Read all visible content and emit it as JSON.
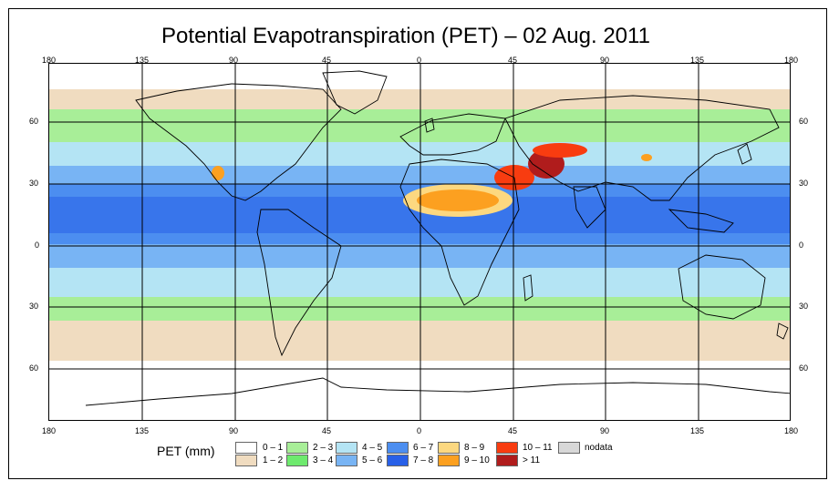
{
  "title": "Potential Evapotranspiration (PET) – 02 Aug. 2011",
  "axes": {
    "lon_ticks": [
      "180",
      "135",
      "90",
      "45",
      "0",
      "45",
      "90",
      "135",
      "180"
    ],
    "lat_ticks": [
      "60",
      "30",
      "0",
      "30",
      "60"
    ]
  },
  "legend": {
    "title": "PET (mm)",
    "items": [
      {
        "label": "0 – 1",
        "color": "#ffffff"
      },
      {
        "label": "1 – 2",
        "color": "#f0dcc0"
      },
      {
        "label": "2 – 3",
        "color": "#a8ee98"
      },
      {
        "label": "3 – 4",
        "color": "#6eea6e"
      },
      {
        "label": "4 – 5",
        "color": "#b4e4f4"
      },
      {
        "label": "5 – 6",
        "color": "#78b4f4"
      },
      {
        "label": "6 – 7",
        "color": "#4c8ef0"
      },
      {
        "label": "7 – 8",
        "color": "#2860e8"
      },
      {
        "label": "8 – 9",
        "color": "#fcd880"
      },
      {
        "label": "9 – 10",
        "color": "#fca020"
      },
      {
        "label": "10 – 11",
        "color": "#f83c10"
      },
      {
        "label": "> 11",
        "color": "#b01c1c"
      },
      {
        "label": "nodata",
        "color": "#d8d8d8"
      }
    ]
  }
}
